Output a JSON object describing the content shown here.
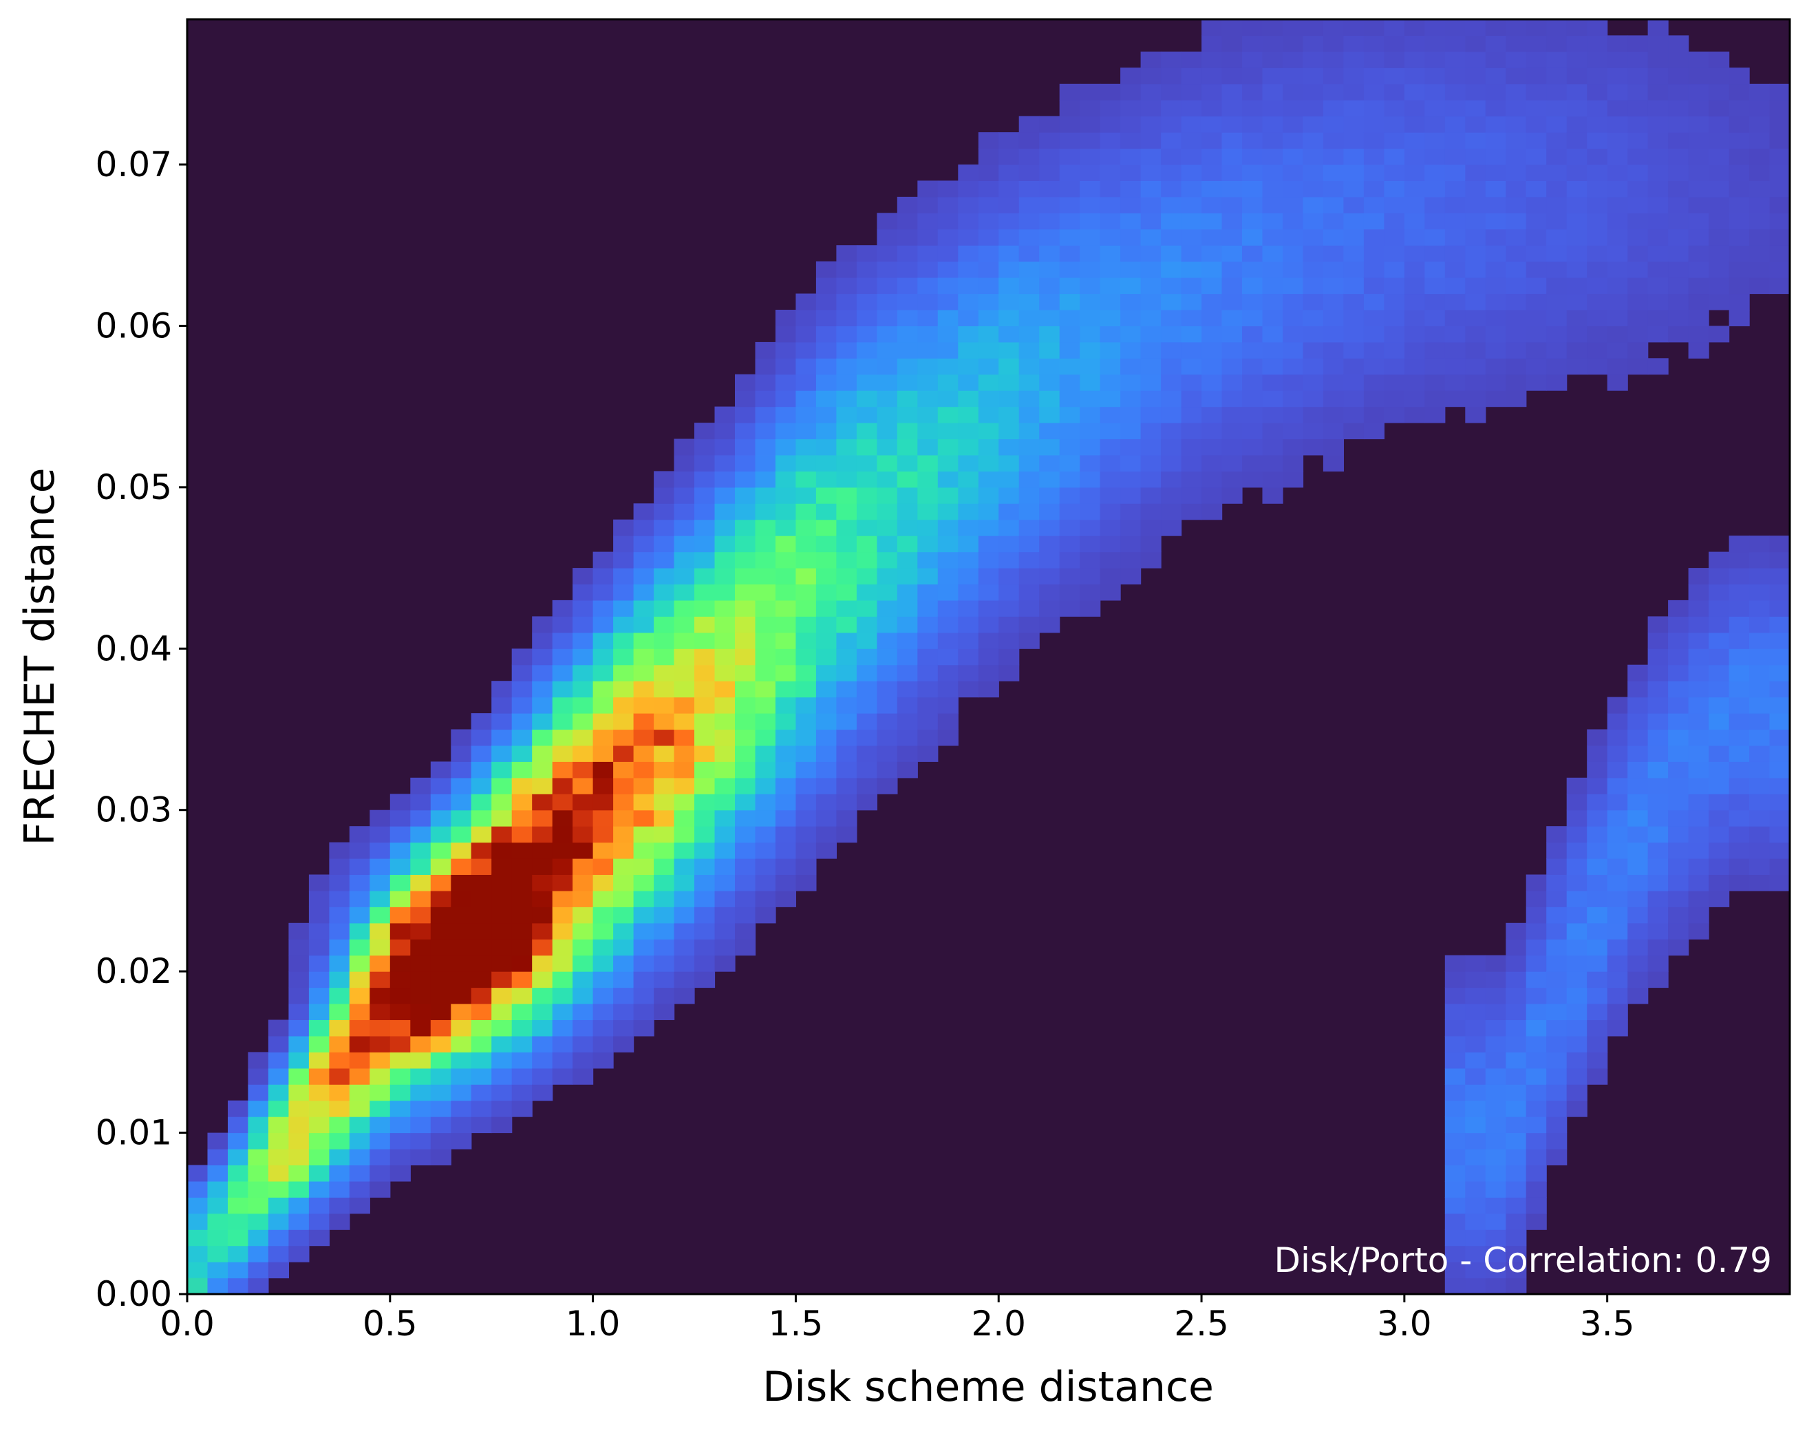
{
  "chart_data": {
    "type": "heatmap",
    "title": "",
    "xlabel": "Disk scheme distance",
    "ylabel": "FRECHET distance",
    "xlim": [
      0.0,
      3.95
    ],
    "ylim": [
      0.0,
      0.079
    ],
    "xticks": [
      "0.0",
      "0.5",
      "1.0",
      "1.5",
      "2.0",
      "2.5",
      "3.0",
      "3.5"
    ],
    "yticks": [
      "0.00",
      "0.01",
      "0.02",
      "0.03",
      "0.04",
      "0.05",
      "0.06",
      "0.07"
    ],
    "grid": false,
    "legend": "none",
    "colormap": "turbo",
    "background_color": "#30123b",
    "bins": {
      "nx": 79,
      "ny": 79
    },
    "annotation": "Disk/Porto - Correlation: 0.79",
    "annotation_color": "#ffffff",
    "correlation": 0.79,
    "density_peak": {
      "x": 0.68,
      "y": 0.0215
    },
    "density_ridge": [
      {
        "x": 0.05,
        "y": 0.003
      },
      {
        "x": 0.25,
        "y": 0.0095
      },
      {
        "x": 0.5,
        "y": 0.018
      },
      {
        "x": 0.7,
        "y": 0.0225
      },
      {
        "x": 1.0,
        "y": 0.03
      },
      {
        "x": 1.3,
        "y": 0.037
      },
      {
        "x": 1.6,
        "y": 0.046
      },
      {
        "x": 2.0,
        "y": 0.055
      },
      {
        "x": 2.5,
        "y": 0.063
      },
      {
        "x": 3.0,
        "y": 0.067
      },
      {
        "x": 3.5,
        "y": 0.068
      }
    ],
    "secondary_cluster": [
      {
        "x": 3.25,
        "y": 0.01
      },
      {
        "x": 3.4,
        "y": 0.02
      },
      {
        "x": 3.6,
        "y": 0.03
      },
      {
        "x": 3.8,
        "y": 0.036
      }
    ],
    "corner_bin": {
      "x": 0.0,
      "y": 0.0,
      "color": "#2fd9b0"
    }
  }
}
